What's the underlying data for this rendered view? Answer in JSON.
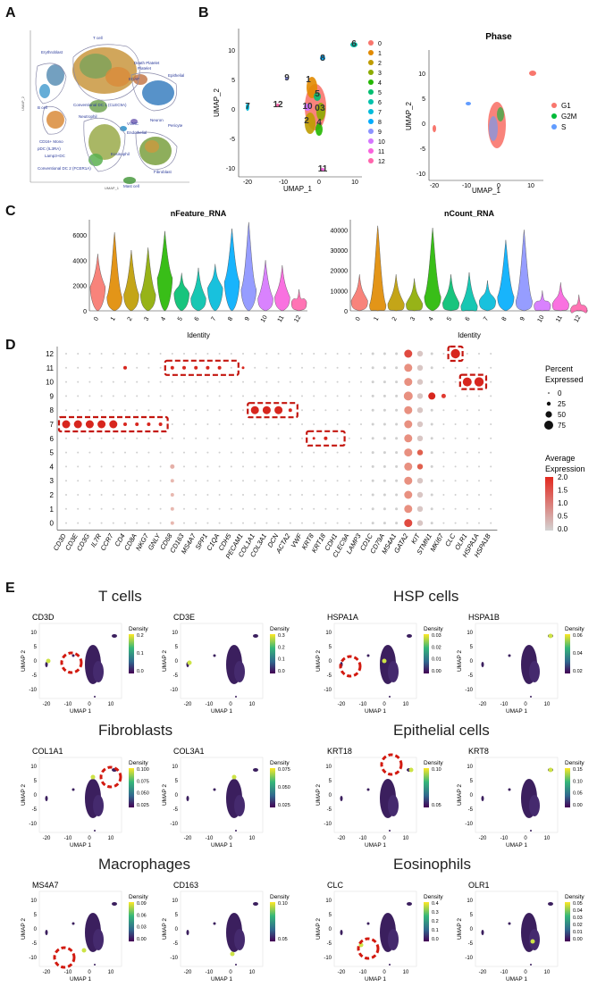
{
  "panels": {
    "a": "A",
    "b": "B",
    "c": "C",
    "d": "D",
    "e": "E"
  },
  "panel_a": {
    "labels": [
      "T cell",
      "Erythroblast",
      "Death Platelet",
      "Platelet",
      "Epithelial",
      "ECAF",
      "Conventional DC 1 (CLEC9A)",
      "Neutrophil",
      "B cell",
      "Neuron",
      "Pericyte",
      "VSMC",
      "Endothelial",
      "CD16+ Mono",
      "pDC (IL3RA)",
      "Lamp3+DC",
      "Eosinophil",
      "Fibroblast",
      "Conventional DC 2 (FCER1A)",
      "Mast cell"
    ],
    "xlabel": "UMAP_1",
    "ylabel": "UMAP_2"
  },
  "panel_b1": {
    "xlabel": "UMAP_1",
    "ylabel": "UMAP_2",
    "xticks": [
      "-20",
      "-10",
      "0",
      "10"
    ],
    "yticks": [
      "10",
      "5",
      "0",
      "-5",
      "-10"
    ],
    "cluster_labels": [
      "0",
      "1",
      "2",
      "3",
      "4",
      "5",
      "6",
      "7",
      "8",
      "9",
      "10",
      "11",
      "12"
    ],
    "legend": [
      "0",
      "1",
      "2",
      "3",
      "4",
      "5",
      "6",
      "7",
      "8",
      "9",
      "10",
      "11",
      "12"
    ],
    "colors": [
      "#f8766d",
      "#e18a00",
      "#be9c00",
      "#8cab00",
      "#24b700",
      "#00be70",
      "#00c1ab",
      "#00bbda",
      "#00acfc",
      "#8b93ff",
      "#d575fe",
      "#f962dd",
      "#ff65ac"
    ]
  },
  "panel_b2": {
    "title": "Phase",
    "xlabel": "UMAP_1",
    "ylabel": "UMAP_2",
    "xticks": [
      "-20",
      "-10",
      "0",
      "10"
    ],
    "yticks": [
      "10",
      "5",
      "0",
      "-5",
      "-10"
    ],
    "legend": [
      {
        "name": "G1",
        "color": "#f8766d"
      },
      {
        "name": "G2M",
        "color": "#00ba38"
      },
      {
        "name": "S",
        "color": "#619cff"
      }
    ]
  },
  "chart_data": [
    {
      "type": "violin",
      "title": "nFeature_RNA",
      "xlabel": "Identity",
      "categories": [
        "0",
        "1",
        "2",
        "3",
        "4",
        "5",
        "6",
        "7",
        "8",
        "9",
        "10",
        "11",
        "12"
      ],
      "yticks": [
        0,
        2000,
        4000,
        6000
      ],
      "ylim": [
        0,
        7200
      ],
      "max": [
        4500,
        6200,
        4800,
        5000,
        6300,
        3000,
        3400,
        3700,
        6500,
        7000,
        4000,
        3600,
        1700
      ],
      "median": [
        1900,
        1100,
        1300,
        1300,
        2600,
        1400,
        1000,
        1800,
        2300,
        1700,
        1000,
        1100,
        700
      ]
    },
    {
      "type": "violin",
      "title": "nCount_RNA",
      "xlabel": "Identity",
      "categories": [
        "0",
        "1",
        "2",
        "3",
        "4",
        "5",
        "6",
        "7",
        "8",
        "9",
        "10",
        "11",
        "12"
      ],
      "yticks": [
        0,
        10000,
        20000,
        30000,
        40000
      ],
      "ylim": [
        0,
        45000
      ],
      "max": [
        18000,
        42000,
        18000,
        16000,
        41000,
        18000,
        19000,
        15000,
        35000,
        40000,
        10000,
        14000,
        8000
      ],
      "median": [
        5000,
        3000,
        3500,
        3500,
        7000,
        4000,
        2500,
        5000,
        7000,
        5000,
        3000,
        3500,
        1000
      ]
    },
    {
      "type": "dotplot",
      "genes": [
        "CD3D",
        "CD3E",
        "CD3G",
        "IL7R",
        "CCR7",
        "CD4",
        "CD8A",
        "NKG7",
        "GNLY",
        "CD68",
        "CD163",
        "MS4A7",
        "SPP1",
        "C1QA",
        "CDH5",
        "PECAM1",
        "COL1A1",
        "COL3A1",
        "DCN",
        "ACTA2",
        "VWF",
        "KRT8",
        "KRT18",
        "CDH1",
        "CLEC9A",
        "LAMP3",
        "CD1C",
        "CD79A",
        "MS4A1",
        "GATA2",
        "KIT",
        "STMN1",
        "MKI67",
        "CLC",
        "OLR1",
        "HSPA1A",
        "HSPA1B"
      ],
      "clusters": [
        "0",
        "1",
        "2",
        "3",
        "4",
        "5",
        "6",
        "7",
        "8",
        "9",
        "10",
        "11",
        "12"
      ],
      "legend_pct_title": "Percent Expressed",
      "legend_pct": [
        "0",
        "25",
        "50",
        "75"
      ],
      "legend_exp_title": "Average Expression",
      "legend_exp": [
        "2.0",
        "1.5",
        "1.0",
        "0.5",
        "0.0"
      ]
    }
  ],
  "panel_e": {
    "groups": [
      {
        "title": "T cells",
        "plots": [
          {
            "gene": "CD3D",
            "ticks": [
              "0.2",
              "0.1",
              "0.0"
            ]
          },
          {
            "gene": "CD3E",
            "ticks": [
              "0.3",
              "0.2",
              "0.1",
              "0.0"
            ]
          }
        ]
      },
      {
        "title": "HSP cells",
        "plots": [
          {
            "gene": "HSPA1A",
            "ticks": [
              "0.03",
              "0.02",
              "0.01",
              "0.00"
            ]
          },
          {
            "gene": "HSPA1B",
            "ticks": [
              "0.06",
              "0.04",
              "0.02"
            ]
          }
        ]
      },
      {
        "title": "Fibroblasts",
        "plots": [
          {
            "gene": "COL1A1",
            "ticks": [
              "0.100",
              "0.075",
              "0.050",
              "0.025"
            ]
          },
          {
            "gene": "COL3A1",
            "ticks": [
              "0.075",
              "0.050",
              "0.025"
            ]
          }
        ]
      },
      {
        "title": "Epithelial cells",
        "plots": [
          {
            "gene": "KRT18",
            "ticks": [
              "0.10",
              "0.05"
            ]
          },
          {
            "gene": "KRT8",
            "ticks": [
              "0.15",
              "0.10",
              "0.05",
              "0.00"
            ]
          }
        ]
      },
      {
        "title": "Macrophages",
        "plots": [
          {
            "gene": "MS4A7",
            "ticks": [
              "0.09",
              "0.06",
              "0.03",
              "0.00"
            ]
          },
          {
            "gene": "CD163",
            "ticks": [
              "0.10",
              "0.05"
            ]
          }
        ]
      },
      {
        "title": "Eosinophils",
        "plots": [
          {
            "gene": "CLC",
            "ticks": [
              "0.4",
              "0.3",
              "0.2",
              "0.1",
              "0.0"
            ]
          },
          {
            "gene": "OLR1",
            "ticks": [
              "0.05",
              "0.04",
              "0.03",
              "0.02",
              "0.01",
              "0.00"
            ]
          }
        ]
      }
    ],
    "density_label": "Density",
    "xlabel": "UMAP 1",
    "ylabel": "UMAP 2",
    "xticks": [
      "-20",
      "-10",
      "0",
      "10"
    ],
    "yticks": [
      "10",
      "5",
      "0",
      "-5",
      "-10"
    ]
  }
}
